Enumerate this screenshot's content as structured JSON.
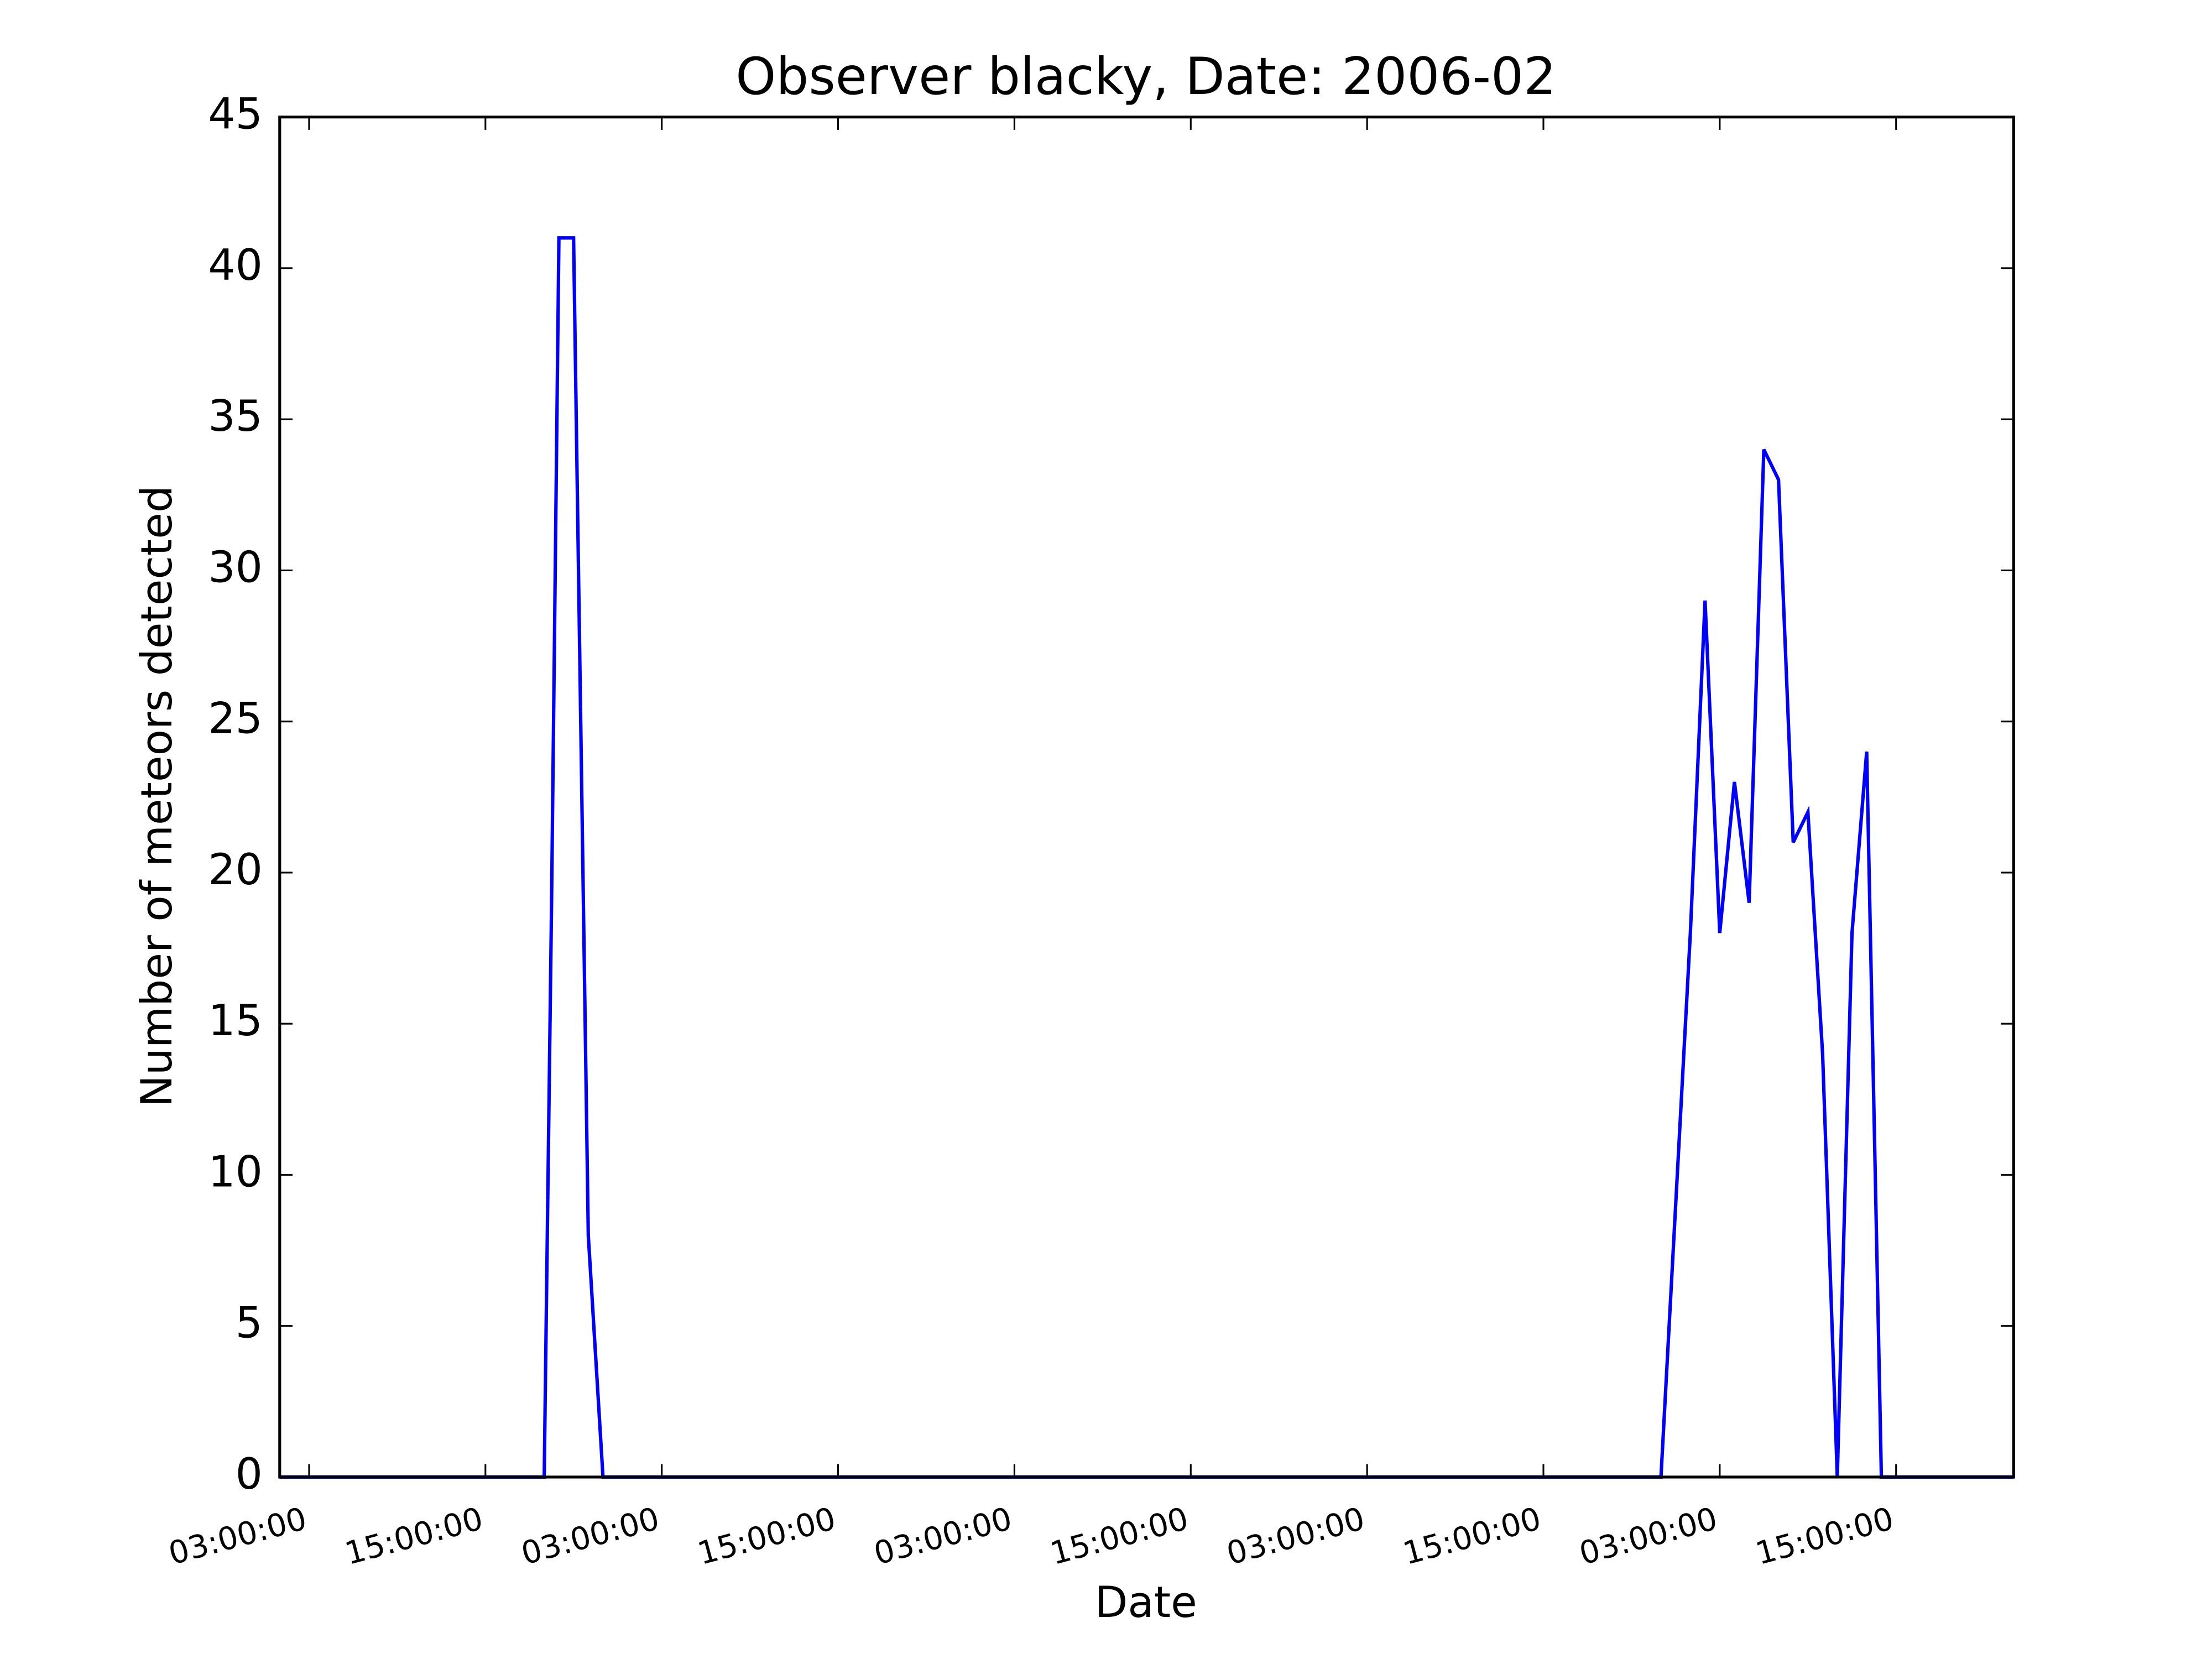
{
  "chart_data": {
    "type": "line",
    "title": "Observer blacky, Date: 2006-02",
    "x_label": "Date",
    "y_label": "Number of meteors detected",
    "x": [
      1,
      19,
      19.5,
      20,
      21,
      22,
      23,
      95,
      97,
      98,
      99,
      100,
      101,
      102,
      103,
      104,
      105,
      106,
      107,
      108,
      109,
      110,
      119
    ],
    "series": [
      {
        "name": "blacky",
        "color": "#0000ff",
        "values": [
          0,
          0,
          19,
          41,
          41,
          8,
          0,
          0,
          18,
          29,
          18,
          23,
          19,
          34,
          33,
          21,
          22,
          14,
          0,
          18,
          24,
          0,
          0
        ]
      }
    ],
    "xlim": [
      1,
      119
    ],
    "xticks": [
      {
        "value": 3,
        "label": "03:00:00"
      },
      {
        "value": 15,
        "label": "15:00:00"
      },
      {
        "value": 27,
        "label": "03:00:00"
      },
      {
        "value": 39,
        "label": "15:00:00"
      },
      {
        "value": 51,
        "label": "03:00:00"
      },
      {
        "value": 63,
        "label": "15:00:00"
      },
      {
        "value": 75,
        "label": "03:00:00"
      },
      {
        "value": 87,
        "label": "15:00:00"
      },
      {
        "value": 99,
        "label": "03:00:00"
      },
      {
        "value": 111,
        "label": "15:00:00"
      }
    ],
    "ylim": [
      0,
      45
    ],
    "yticks": [
      0,
      5,
      10,
      15,
      20,
      25,
      30,
      35,
      40,
      45
    ],
    "grid": false
  }
}
